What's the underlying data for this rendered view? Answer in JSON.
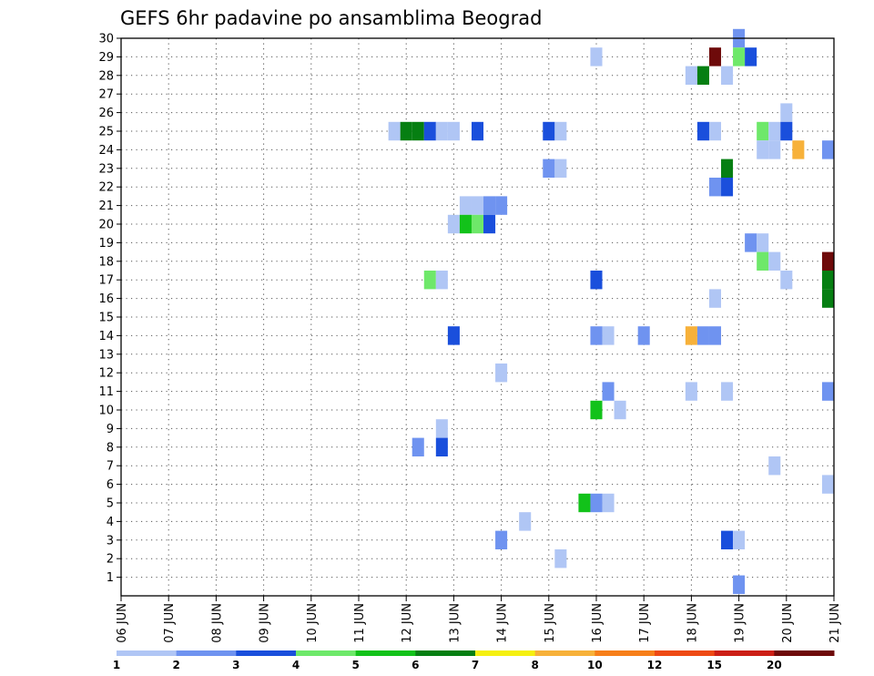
{
  "chart_data": {
    "type": "heatmap",
    "title": "GEFS 6hr padavine po ansamblima Beograd",
    "y_ticks": [
      "1",
      "2",
      "3",
      "4",
      "5",
      "6",
      "7",
      "8",
      "9",
      "10",
      "11",
      "12",
      "13",
      "14",
      "15",
      "16",
      "17",
      "18",
      "19",
      "20",
      "21",
      "22",
      "23",
      "24",
      "25",
      "26",
      "27",
      "28",
      "29",
      "30"
    ],
    "ylim": [
      0,
      30
    ],
    "x_ticks": [
      "06 JUN",
      "07 JUN",
      "08 JUN",
      "09 JUN",
      "10 JUN",
      "11 JUN",
      "12 JUN",
      "13 JUN",
      "14 JUN",
      "15 JUN",
      "16 JUN",
      "17 JUN",
      "18 JUN",
      "19 JUN",
      "20 JUN",
      "21 JUN"
    ],
    "xlim": [
      0,
      60
    ],
    "x_unit": "6-hour steps from 06 JUN 00Z",
    "grid": true,
    "colorbar": {
      "labels": [
        "1",
        "2",
        "3",
        "4",
        "5",
        "6",
        "7",
        "8",
        "10",
        "12",
        "15",
        "20"
      ],
      "colors": [
        "#b0c6f5",
        "#6f93f0",
        "#1a4fdc",
        "#6ee86a",
        "#12c21a",
        "#067f12",
        "#f5f010",
        "#f7b13a",
        "#f77f1a",
        "#ee4a14",
        "#cc1f16",
        "#6e0a0a"
      ]
    },
    "cells": [
      {
        "step": 52,
        "member": 30,
        "color": "#6f93f0"
      },
      {
        "step": 40,
        "member": 29,
        "color": "#b0c6f5"
      },
      {
        "step": 50,
        "member": 29,
        "color": "#6e0a0a"
      },
      {
        "step": 52,
        "member": 29,
        "color": "#6ee86a"
      },
      {
        "step": 53,
        "member": 29,
        "color": "#1a4fdc"
      },
      {
        "step": 48,
        "member": 28,
        "color": "#b0c6f5"
      },
      {
        "step": 49,
        "member": 28,
        "color": "#067f12"
      },
      {
        "step": 51,
        "member": 28,
        "color": "#b0c6f5"
      },
      {
        "step": 56,
        "member": 26,
        "color": "#b0c6f5"
      },
      {
        "step": 23,
        "member": 25,
        "color": "#b0c6f5"
      },
      {
        "step": 24,
        "member": 25,
        "color": "#067f12"
      },
      {
        "step": 25,
        "member": 25,
        "color": "#067f12"
      },
      {
        "step": 26,
        "member": 25,
        "color": "#1a4fdc"
      },
      {
        "step": 27,
        "member": 25,
        "color": "#b0c6f5"
      },
      {
        "step": 28,
        "member": 25,
        "color": "#b0c6f5"
      },
      {
        "step": 30,
        "member": 25,
        "color": "#1a4fdc"
      },
      {
        "step": 36,
        "member": 25,
        "color": "#1a4fdc"
      },
      {
        "step": 37,
        "member": 25,
        "color": "#b0c6f5"
      },
      {
        "step": 49,
        "member": 25,
        "color": "#1a4fdc"
      },
      {
        "step": 50,
        "member": 25,
        "color": "#b0c6f5"
      },
      {
        "step": 54,
        "member": 25,
        "color": "#6ee86a"
      },
      {
        "step": 55,
        "member": 25,
        "color": "#b0c6f5"
      },
      {
        "step": 56,
        "member": 25,
        "color": "#1a4fdc"
      },
      {
        "step": 54,
        "member": 24,
        "color": "#b0c6f5"
      },
      {
        "step": 55,
        "member": 24,
        "color": "#b0c6f5"
      },
      {
        "step": 57,
        "member": 24,
        "color": "#f7b13a"
      },
      {
        "step": 59.5,
        "member": 24,
        "color": "#6f93f0"
      },
      {
        "step": 36,
        "member": 23,
        "color": "#6f93f0"
      },
      {
        "step": 37,
        "member": 23,
        "color": "#b0c6f5"
      },
      {
        "step": 51,
        "member": 23,
        "color": "#067f12"
      },
      {
        "step": 50,
        "member": 22,
        "color": "#6f93f0"
      },
      {
        "step": 51,
        "member": 22,
        "color": "#1a4fdc"
      },
      {
        "step": 29,
        "member": 21,
        "color": "#b0c6f5"
      },
      {
        "step": 30,
        "member": 21,
        "color": "#b0c6f5"
      },
      {
        "step": 31,
        "member": 21,
        "color": "#6f93f0"
      },
      {
        "step": 32,
        "member": 21,
        "color": "#6f93f0"
      },
      {
        "step": 28,
        "member": 20,
        "color": "#b0c6f5"
      },
      {
        "step": 29,
        "member": 20,
        "color": "#12c21a"
      },
      {
        "step": 30,
        "member": 20,
        "color": "#6ee86a"
      },
      {
        "step": 31,
        "member": 20,
        "color": "#1a4fdc"
      },
      {
        "step": 53,
        "member": 19,
        "color": "#6f93f0"
      },
      {
        "step": 54,
        "member": 19,
        "color": "#b0c6f5"
      },
      {
        "step": 54,
        "member": 18,
        "color": "#6ee86a"
      },
      {
        "step": 55,
        "member": 18,
        "color": "#b0c6f5"
      },
      {
        "step": 59.5,
        "member": 18,
        "color": "#6e0a0a"
      },
      {
        "step": 26,
        "member": 17,
        "color": "#6ee86a"
      },
      {
        "step": 27,
        "member": 17,
        "color": "#b0c6f5"
      },
      {
        "step": 40,
        "member": 17,
        "color": "#1a4fdc"
      },
      {
        "step": 56,
        "member": 17,
        "color": "#b0c6f5"
      },
      {
        "step": 59.5,
        "member": 17,
        "color": "#067f12"
      },
      {
        "step": 59.5,
        "member": 16,
        "color": "#067f12"
      },
      {
        "step": 50,
        "member": 16,
        "color": "#b0c6f5"
      },
      {
        "step": 28,
        "member": 14,
        "color": "#1a4fdc"
      },
      {
        "step": 40,
        "member": 14,
        "color": "#6f93f0"
      },
      {
        "step": 41,
        "member": 14,
        "color": "#b0c6f5"
      },
      {
        "step": 44,
        "member": 14,
        "color": "#6f93f0"
      },
      {
        "step": 48,
        "member": 14,
        "color": "#f7b13a"
      },
      {
        "step": 49,
        "member": 14,
        "color": "#6f93f0"
      },
      {
        "step": 50,
        "member": 14,
        "color": "#6f93f0"
      },
      {
        "step": 32,
        "member": 12,
        "color": "#b0c6f5"
      },
      {
        "step": 41,
        "member": 11,
        "color": "#6f93f0"
      },
      {
        "step": 48,
        "member": 11,
        "color": "#b0c6f5"
      },
      {
        "step": 51,
        "member": 11,
        "color": "#b0c6f5"
      },
      {
        "step": 59.5,
        "member": 11,
        "color": "#6f93f0"
      },
      {
        "step": 40,
        "member": 10,
        "color": "#12c21a"
      },
      {
        "step": 42,
        "member": 10,
        "color": "#b0c6f5"
      },
      {
        "step": 27,
        "member": 9,
        "color": "#b0c6f5"
      },
      {
        "step": 25,
        "member": 8,
        "color": "#6f93f0"
      },
      {
        "step": 27,
        "member": 8,
        "color": "#1a4fdc"
      },
      {
        "step": 55,
        "member": 7,
        "color": "#b0c6f5"
      },
      {
        "step": 59.5,
        "member": 6,
        "color": "#b0c6f5"
      },
      {
        "step": 39,
        "member": 5,
        "color": "#12c21a"
      },
      {
        "step": 40,
        "member": 5,
        "color": "#6f93f0"
      },
      {
        "step": 41,
        "member": 5,
        "color": "#b0c6f5"
      },
      {
        "step": 34,
        "member": 4,
        "color": "#b0c6f5"
      },
      {
        "step": 32,
        "member": 3,
        "color": "#6f93f0"
      },
      {
        "step": 51,
        "member": 3,
        "color": "#1a4fdc"
      },
      {
        "step": 52,
        "member": 3,
        "color": "#b0c6f5"
      },
      {
        "step": 37,
        "member": 2,
        "color": "#b0c6f5"
      },
      {
        "step": 52,
        "member": 0.6,
        "color": "#6f93f0"
      }
    ]
  }
}
